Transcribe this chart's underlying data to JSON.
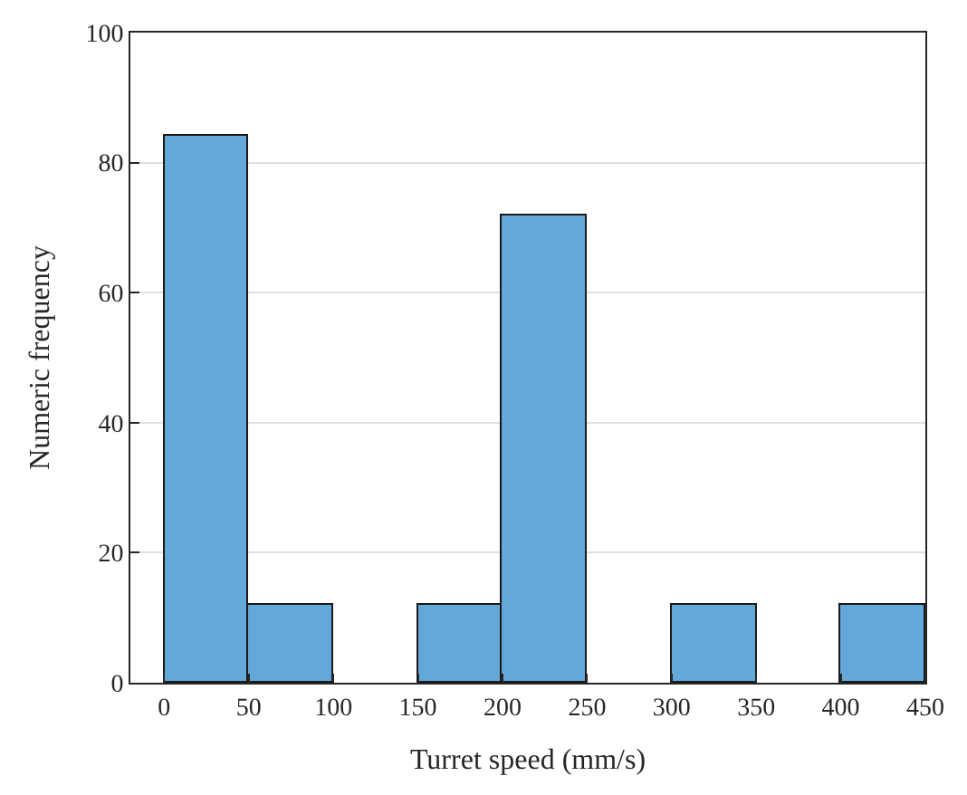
{
  "chart_data": {
    "type": "histogram",
    "xlabel": "Turret speed (mm/s)",
    "ylabel": "Numeric frequency",
    "bins": [
      0,
      50,
      100,
      150,
      200,
      250,
      300,
      350,
      400,
      450
    ],
    "values": [
      84,
      12,
      0,
      12,
      72,
      0,
      12,
      0,
      12
    ],
    "color": "#64a8da",
    "xlim": [
      -20,
      450
    ],
    "xticks": [
      0,
      50,
      100,
      150,
      200,
      250,
      300,
      350,
      400,
      450
    ],
    "ylim": [
      0,
      100
    ],
    "yticks": [
      0,
      20,
      40,
      60,
      80,
      100
    ],
    "grid": "y"
  }
}
